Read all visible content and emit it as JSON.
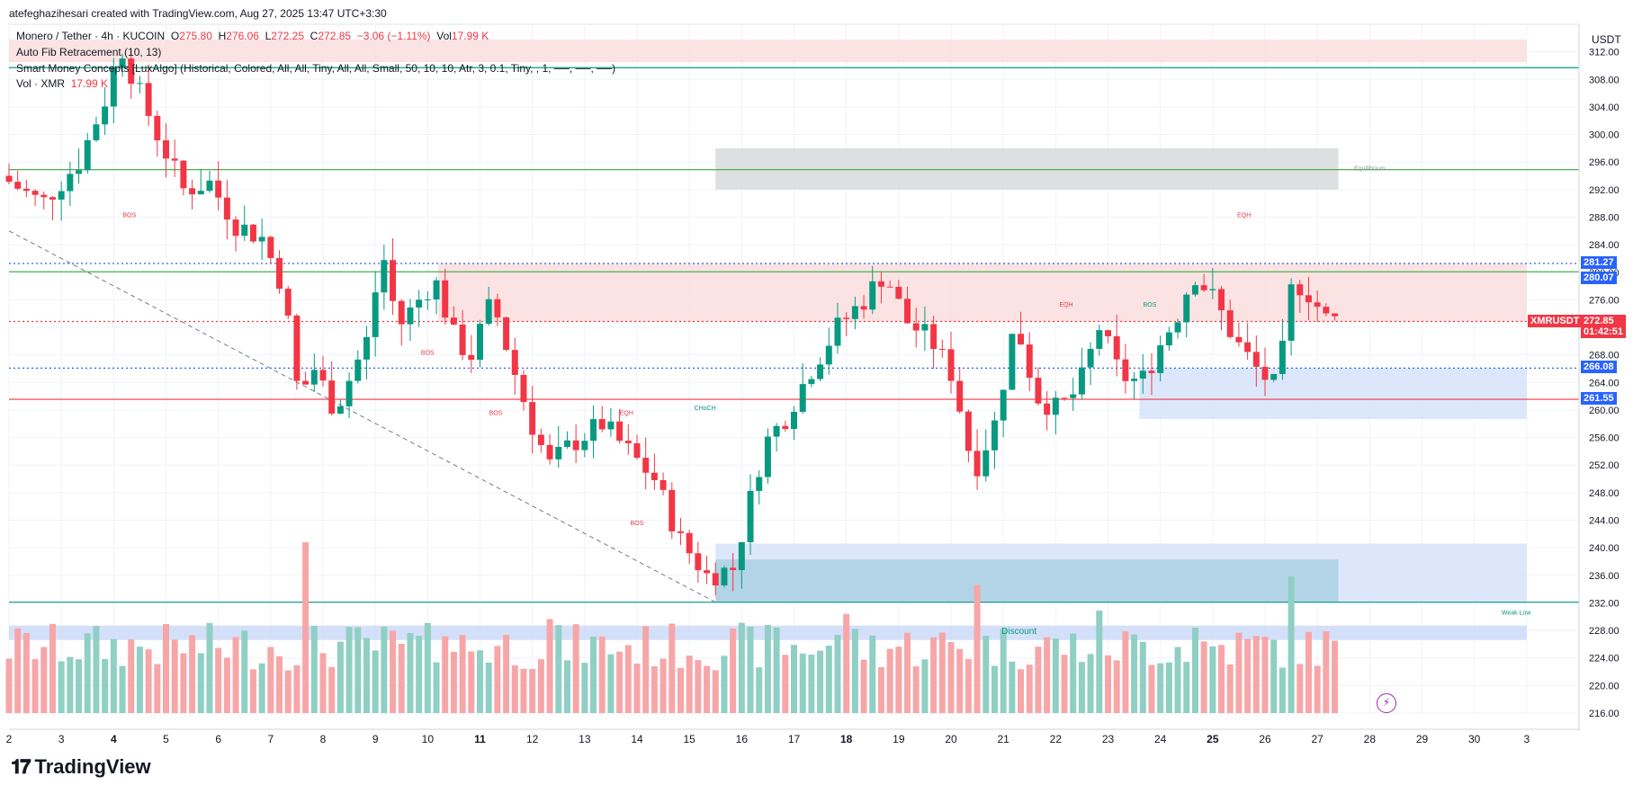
{
  "caption": "atefeghazihesari created with TradingView.com, Aug 27, 2025 13:47 UTC+3:30",
  "legend": {
    "symbol": "Monero / Tether · 4h · KUCOIN",
    "o_label": "O",
    "o_value": "275.80",
    "h_label": "H",
    "h_value": "276.06",
    "l_label": "L",
    "l_value": "272.25",
    "c_label": "C",
    "c_value": "272.85",
    "change": "−3.06 (−1.11%)",
    "vol_label": "Vol",
    "vol_value": "17.99 K",
    "indicator1": "Auto Fib Retracement (10, 13)",
    "indicator2": "Smart Money Concepts [LuxAlgo] (Historical, Colored, All, All, Tiny, All, All, Small, 50, 10, 10, Atr, 3, 0.1, Tiny, , 1, ──, ──, ──)",
    "vol_indicator": "Vol · XMR",
    "vol_indicator_value": "17.99 K"
  },
  "currency": "USDT",
  "brand": "TradingView",
  "price_tags": {
    "tag1": "281.27",
    "tag2": "280.07",
    "symbol_tag": "XMRUSDT",
    "last_price": "272.85",
    "countdown": "01:42:51",
    "tag3": "266.08",
    "tag4": "261.55"
  },
  "colors": {
    "up": "#089981",
    "down": "#f23645",
    "up_vol": "#8fcfc4",
    "down_vol": "#f7a6a8",
    "supply_zone": "#fbdcdc",
    "demand_zone": "#d4e1fb",
    "blue_tag": "#2962ff",
    "red_tag": "#f23645"
  },
  "chart_data": {
    "type": "candlestick",
    "ylim": [
      216,
      316
    ],
    "y_ticks": [
      216,
      220,
      224,
      228,
      232,
      236,
      240,
      244,
      248,
      252,
      256,
      260,
      264,
      268,
      272,
      276,
      280,
      284,
      288,
      292,
      296,
      300,
      304,
      308,
      312
    ],
    "x_ticks": [
      "2",
      "3",
      "4",
      "5",
      "6",
      "7",
      "8",
      "9",
      "10",
      "11",
      "12",
      "13",
      "14",
      "15",
      "16",
      "17",
      "18",
      "19",
      "20",
      "21",
      "22",
      "23",
      "24",
      "25",
      "26",
      "27",
      "28",
      "29",
      "30",
      "3"
    ],
    "x_ticks_bold": [
      "4",
      "11",
      "18",
      "25"
    ],
    "day_range": [
      2,
      32
    ],
    "anchors": [
      {
        "d": 2.0,
        "p": 294
      },
      {
        "d": 2.8,
        "p": 290
      },
      {
        "d": 3.5,
        "p": 296
      },
      {
        "d": 4.0,
        "p": 305
      },
      {
        "d": 4.3,
        "p": 313
      },
      {
        "d": 4.6,
        "p": 307
      },
      {
        "d": 5.0,
        "p": 300
      },
      {
        "d": 5.5,
        "p": 292
      },
      {
        "d": 6.0,
        "p": 293
      },
      {
        "d": 6.5,
        "p": 287
      },
      {
        "d": 7.0,
        "p": 285
      },
      {
        "d": 7.4,
        "p": 278
      },
      {
        "d": 7.7,
        "p": 262
      },
      {
        "d": 8.0,
        "p": 266
      },
      {
        "d": 8.4,
        "p": 260
      },
      {
        "d": 9.0,
        "p": 270
      },
      {
        "d": 9.3,
        "p": 283
      },
      {
        "d": 9.6,
        "p": 272
      },
      {
        "d": 10.0,
        "p": 276
      },
      {
        "d": 10.3,
        "p": 279
      },
      {
        "d": 10.7,
        "p": 270
      },
      {
        "d": 11.0,
        "p": 268
      },
      {
        "d": 11.4,
        "p": 276
      },
      {
        "d": 11.8,
        "p": 266
      },
      {
        "d": 12.2,
        "p": 257
      },
      {
        "d": 12.5,
        "p": 252
      },
      {
        "d": 12.9,
        "p": 255
      },
      {
        "d": 13.5,
        "p": 258
      },
      {
        "d": 14.0,
        "p": 254
      },
      {
        "d": 14.5,
        "p": 250
      },
      {
        "d": 15.0,
        "p": 241
      },
      {
        "d": 15.5,
        "p": 236
      },
      {
        "d": 16.0,
        "p": 237
      },
      {
        "d": 16.6,
        "p": 255
      },
      {
        "d": 17.0,
        "p": 259
      },
      {
        "d": 17.5,
        "p": 266
      },
      {
        "d": 18.0,
        "p": 272
      },
      {
        "d": 18.5,
        "p": 276
      },
      {
        "d": 18.9,
        "p": 280
      },
      {
        "d": 19.3,
        "p": 273
      },
      {
        "d": 19.8,
        "p": 270
      },
      {
        "d": 20.2,
        "p": 265
      },
      {
        "d": 20.6,
        "p": 251
      },
      {
        "d": 21.0,
        "p": 258
      },
      {
        "d": 21.4,
        "p": 273
      },
      {
        "d": 21.8,
        "p": 262
      },
      {
        "d": 22.2,
        "p": 260
      },
      {
        "d": 22.6,
        "p": 263
      },
      {
        "d": 23.0,
        "p": 272
      },
      {
        "d": 23.4,
        "p": 265
      },
      {
        "d": 23.8,
        "p": 264
      },
      {
        "d": 24.2,
        "p": 270
      },
      {
        "d": 24.5,
        "p": 274
      },
      {
        "d": 24.8,
        "p": 280
      },
      {
        "d": 25.2,
        "p": 276
      },
      {
        "d": 25.6,
        "p": 270
      },
      {
        "d": 26.0,
        "p": 266
      },
      {
        "d": 26.4,
        "p": 263
      },
      {
        "d": 26.7,
        "p": 279
      },
      {
        "d": 27.0,
        "p": 277
      },
      {
        "d": 27.35,
        "p": 273
      }
    ],
    "volume_spikes": [
      {
        "d": 7.7,
        "v": 1.0
      },
      {
        "d": 12.3,
        "v": 0.55
      },
      {
        "d": 20.5,
        "v": 0.75
      },
      {
        "d": 22.8,
        "v": 0.6
      },
      {
        "d": 26.5,
        "v": 0.8
      },
      {
        "d": 18.0,
        "v": 0.58
      },
      {
        "d": 10.3,
        "v": 0.45
      },
      {
        "d": 16.6,
        "v": 0.5
      },
      {
        "d": 24.7,
        "v": 0.5
      }
    ],
    "zones": [
      {
        "type": "supply",
        "y1": 310.5,
        "y2": 313.8,
        "d1": 2.0,
        "d2": 31.0
      },
      {
        "type": "supply",
        "y1": 272.8,
        "y2": 281.3,
        "d1": 10.2,
        "d2": 31.0
      },
      {
        "type": "equilibrium",
        "y1": 292.0,
        "y2": 298.0,
        "d1": 15.5,
        "d2": 27.4
      },
      {
        "type": "demand",
        "y1": 258.7,
        "y2": 266.1,
        "d1": 23.6,
        "d2": 31.0
      },
      {
        "type": "demand",
        "y1": 232.1,
        "y2": 240.6,
        "d1": 15.5,
        "d2": 31.0
      },
      {
        "type": "demand-strong",
        "y1": 232.1,
        "y2": 238.3,
        "d1": 15.5,
        "d2": 27.4
      },
      {
        "type": "discount",
        "y1": 226.6,
        "y2": 228.7,
        "d1": 2.0,
        "d2": 31.0
      }
    ],
    "h_lines": [
      {
        "price": 309.7,
        "color": "#089981",
        "style": "solid"
      },
      {
        "price": 294.9,
        "color": "#4caf50",
        "style": "solid"
      },
      {
        "price": 281.27,
        "color": "#2962ff",
        "style": "dotted"
      },
      {
        "price": 280.07,
        "color": "#4caf50",
        "style": "solid"
      },
      {
        "price": 272.85,
        "color": "#f23645",
        "style": "dotted"
      },
      {
        "price": 266.08,
        "color": "#2962ff",
        "style": "dotted"
      },
      {
        "price": 261.55,
        "color": "#f23645",
        "style": "solid"
      },
      {
        "price": 232.1,
        "color": "#089981",
        "style": "solid"
      }
    ],
    "annotations": [
      {
        "text": "BOS",
        "d": 4.3,
        "p": 288.0,
        "color": "#f23645"
      },
      {
        "text": "BOS",
        "d": 10.0,
        "p": 268.0,
        "color": "#f23645"
      },
      {
        "text": "BOS",
        "d": 11.3,
        "p": 259.3,
        "color": "#f23645"
      },
      {
        "text": "EQH",
        "d": 13.8,
        "p": 259.3,
        "color": "#f23645"
      },
      {
        "text": "CHoCH",
        "d": 15.3,
        "p": 260.0,
        "color": "#089981"
      },
      {
        "text": "BOS",
        "d": 14.0,
        "p": 243.3,
        "color": "#f23645"
      },
      {
        "text": "EQH",
        "d": 22.2,
        "p": 275.0,
        "color": "#f23645"
      },
      {
        "text": "BOS",
        "d": 23.8,
        "p": 275.0,
        "color": "#089981"
      },
      {
        "text": "EQH",
        "d": 25.6,
        "p": 288.0,
        "color": "#f23645"
      },
      {
        "text": "Equilibrium",
        "d": 28.0,
        "p": 294.8,
        "color": "#9598a1"
      },
      {
        "text": "Discount",
        "d": 21.3,
        "p": 227.5,
        "color": "#089981"
      },
      {
        "text": "Weak Low",
        "d": 30.8,
        "p": 230.3,
        "color": "#089981"
      }
    ],
    "trendline": {
      "d1": 2.0,
      "p1": 286.0,
      "d2": 15.5,
      "p2": 232.1
    }
  }
}
